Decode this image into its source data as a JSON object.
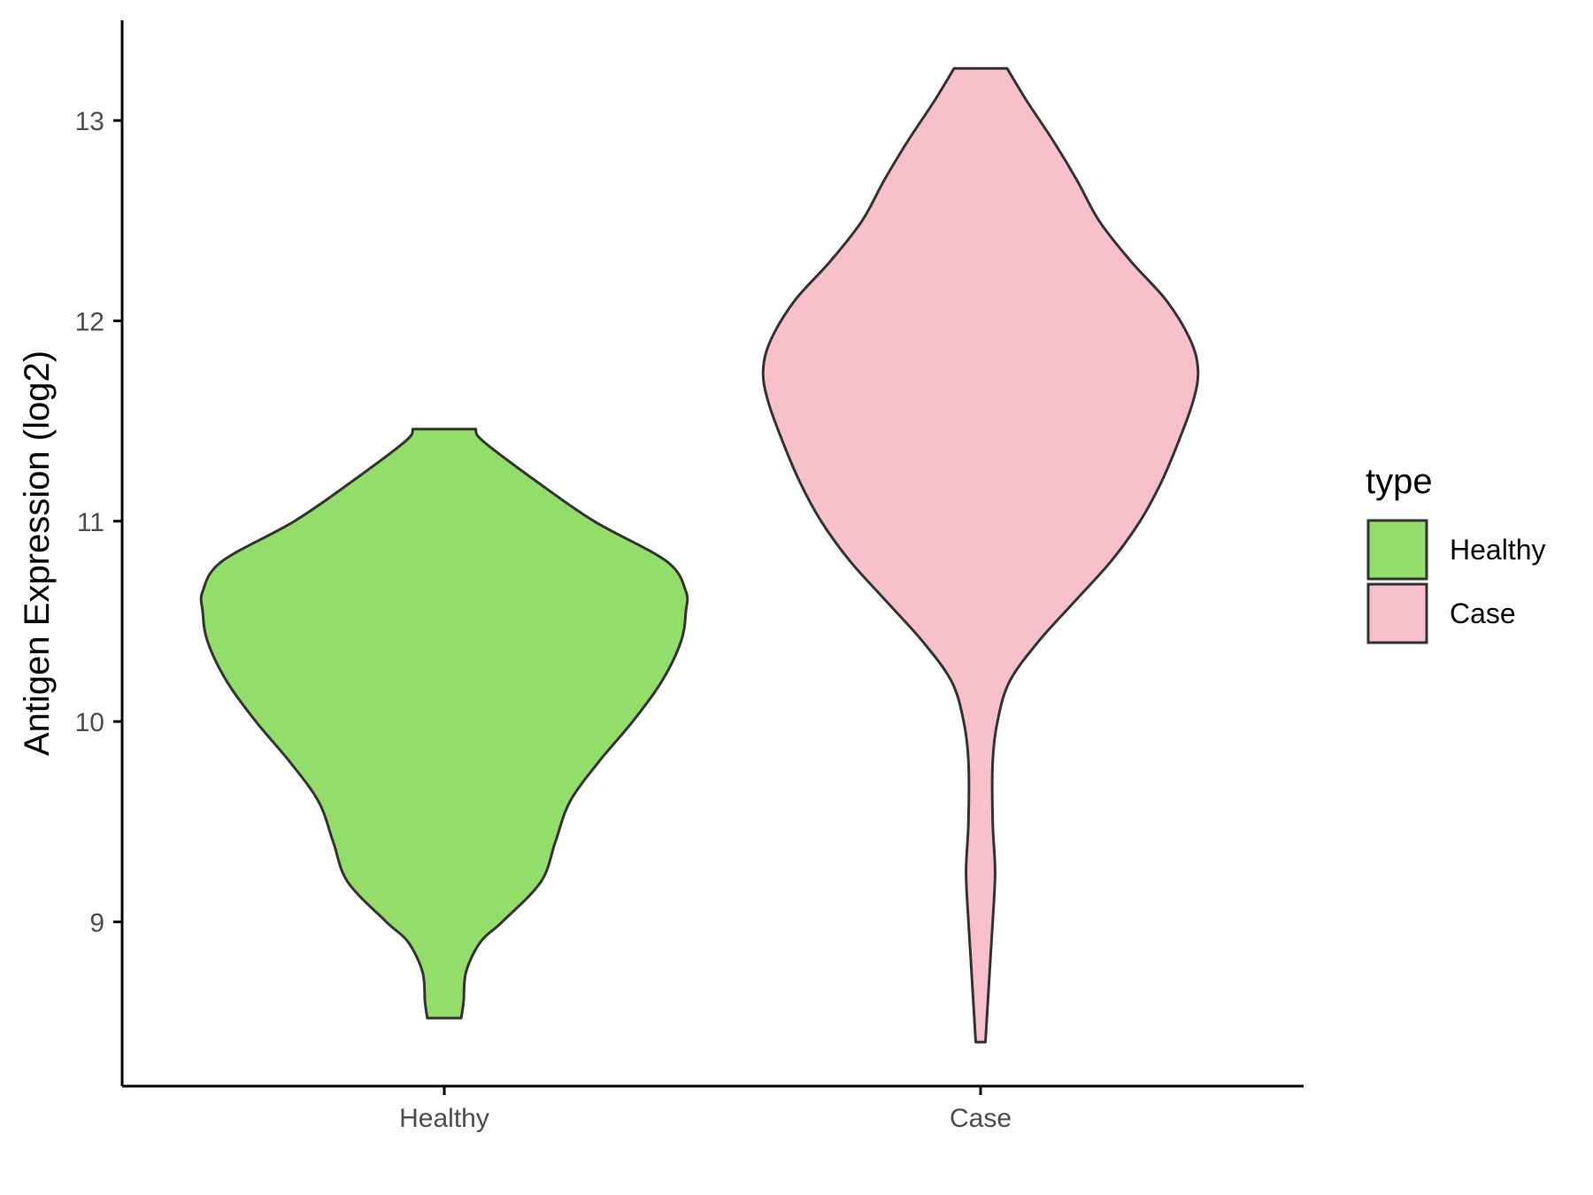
{
  "chart_data": {
    "type": "violin",
    "ylabel": "Antigen Expression (log2)",
    "xlabel": "",
    "ylim": [
      8.18,
      13.5
    ],
    "yticks": [
      9,
      10,
      11,
      12,
      13
    ],
    "categories": [
      "Healthy",
      "Case"
    ],
    "legend": {
      "title": "type",
      "placement": "right"
    },
    "grid": false,
    "series": [
      {
        "name": "Healthy",
        "color": "#93DD6B",
        "min": 8.52,
        "max": 11.46,
        "density_profile": [
          [
            8.52,
            0.07
          ],
          [
            8.6,
            0.08
          ],
          [
            8.75,
            0.09
          ],
          [
            8.9,
            0.15
          ],
          [
            9.0,
            0.24
          ],
          [
            9.2,
            0.4
          ],
          [
            9.4,
            0.46
          ],
          [
            9.6,
            0.52
          ],
          [
            9.8,
            0.64
          ],
          [
            10.0,
            0.78
          ],
          [
            10.2,
            0.9
          ],
          [
            10.4,
            0.98
          ],
          [
            10.55,
            1.0
          ],
          [
            10.65,
            1.0
          ],
          [
            10.8,
            0.92
          ],
          [
            11.0,
            0.62
          ],
          [
            11.2,
            0.38
          ],
          [
            11.4,
            0.16
          ],
          [
            11.46,
            0.13
          ]
        ]
      },
      {
        "name": "Case",
        "color": "#F7C0CB",
        "min": 8.4,
        "max": 13.26,
        "density_profile": [
          [
            8.4,
            0.02
          ],
          [
            8.6,
            0.03
          ],
          [
            8.8,
            0.04
          ],
          [
            9.0,
            0.05
          ],
          [
            9.25,
            0.06
          ],
          [
            9.5,
            0.05
          ],
          [
            9.8,
            0.05
          ],
          [
            10.0,
            0.07
          ],
          [
            10.2,
            0.12
          ],
          [
            10.4,
            0.24
          ],
          [
            10.6,
            0.39
          ],
          [
            10.8,
            0.54
          ],
          [
            11.0,
            0.66
          ],
          [
            11.2,
            0.75
          ],
          [
            11.4,
            0.82
          ],
          [
            11.6,
            0.88
          ],
          [
            11.75,
            0.9
          ],
          [
            11.9,
            0.87
          ],
          [
            12.1,
            0.77
          ],
          [
            12.3,
            0.62
          ],
          [
            12.5,
            0.49
          ],
          [
            12.7,
            0.4
          ],
          [
            12.9,
            0.3
          ],
          [
            13.1,
            0.19
          ],
          [
            13.26,
            0.11
          ]
        ]
      }
    ]
  }
}
